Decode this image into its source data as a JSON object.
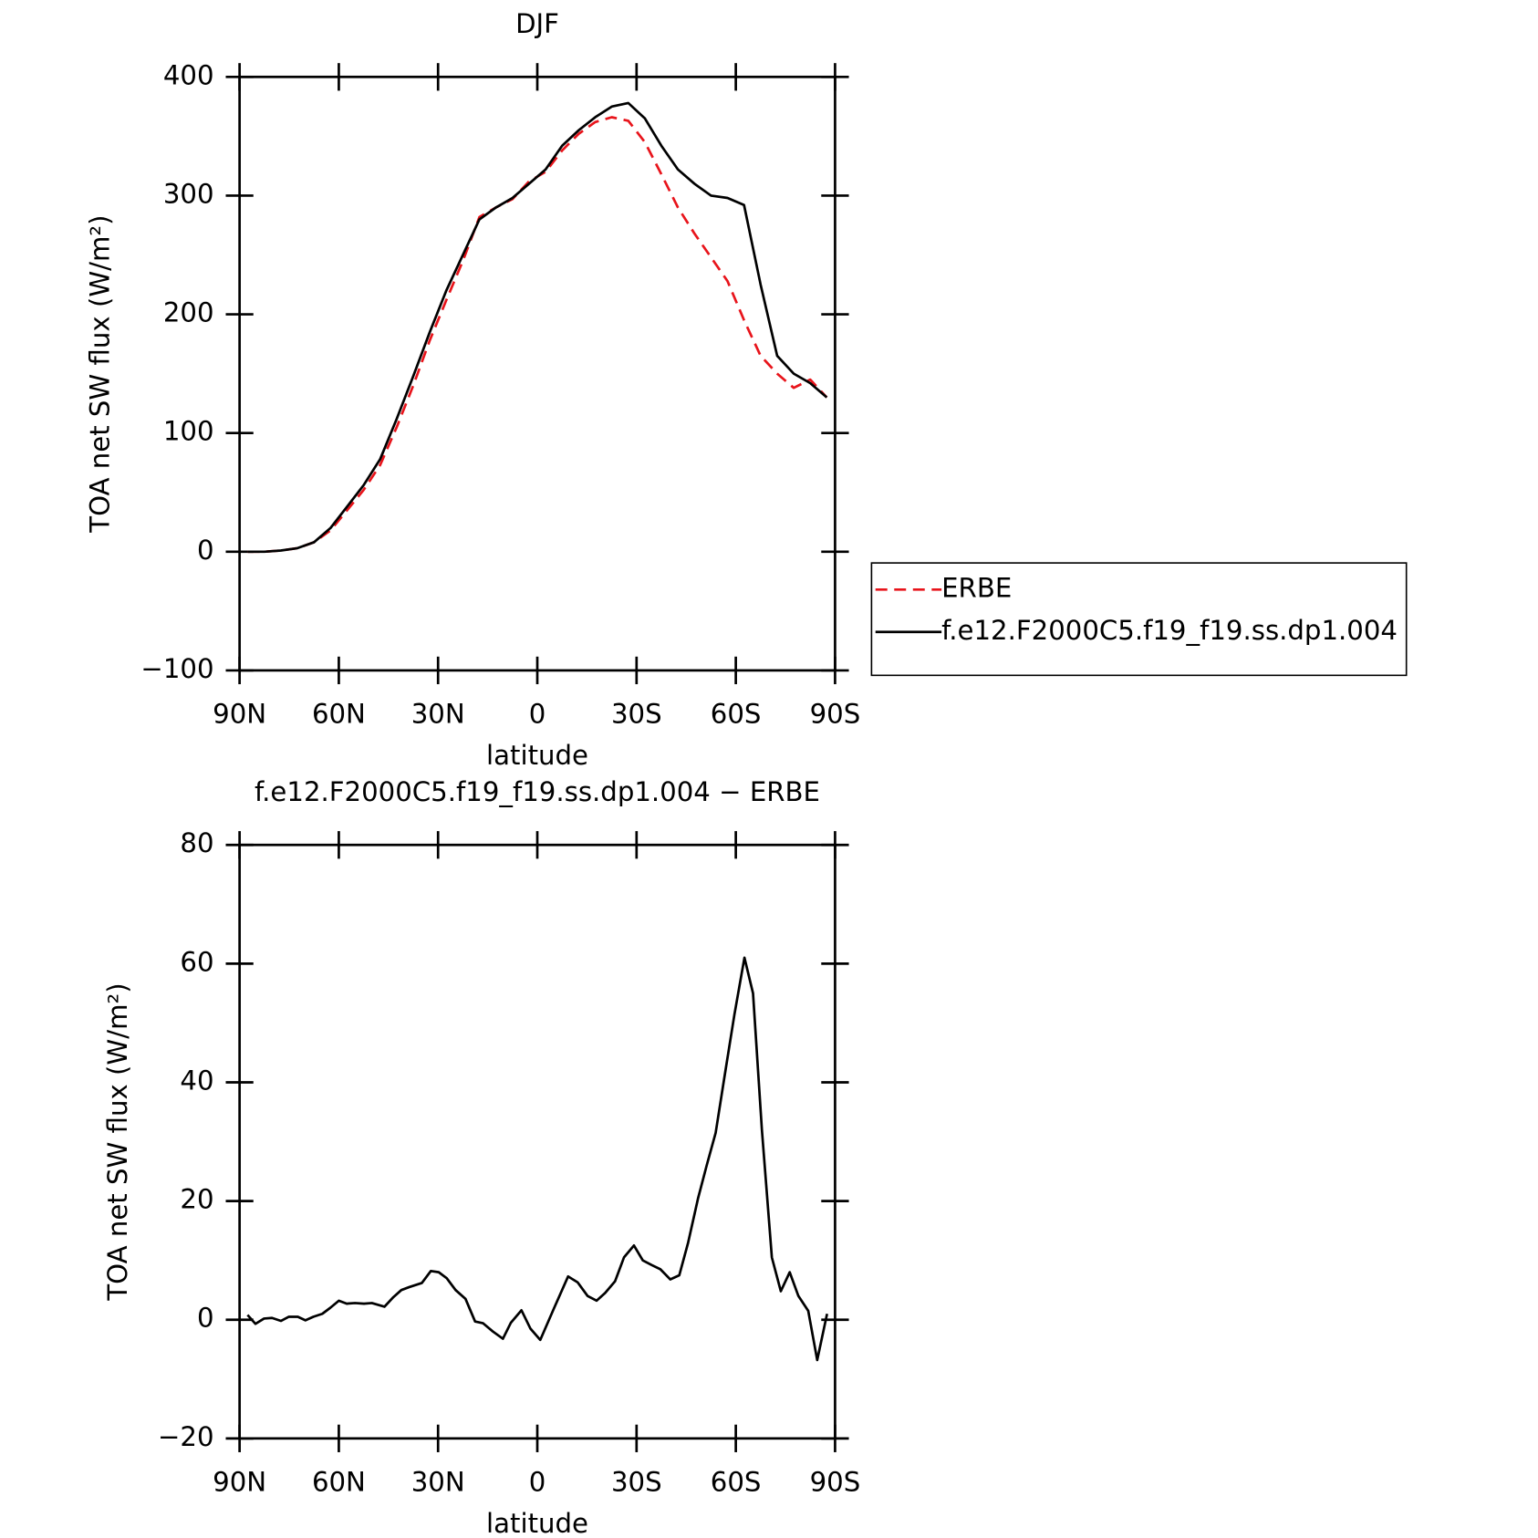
{
  "chart_data": [
    {
      "type": "line",
      "title": "DJF",
      "xlabel": "latitude",
      "ylabel": "TOA net SW flux (W/m²)",
      "x": [
        87.5,
        82.5,
        77.5,
        72.5,
        67.5,
        62.5,
        57.5,
        52.5,
        47.5,
        42.5,
        37.5,
        32.5,
        27.5,
        22.5,
        17.5,
        12.5,
        7.5,
        2.5,
        -2.5,
        -7.5,
        -12.5,
        -17.5,
        -22.5,
        -27.5,
        -32.5,
        -37.5,
        -42.5,
        -47.5,
        -52.5,
        -57.5,
        -62.5,
        -67.5,
        -72.5,
        -77.5,
        -82.5,
        -87.5
      ],
      "series": [
        {
          "name": "ERBE",
          "color": "#e8141b",
          "style": "dashed",
          "values": [
            0,
            0,
            1,
            3,
            8,
            18,
            35,
            52,
            73,
            105,
            140,
            178,
            212,
            245,
            282,
            290,
            297,
            312,
            320,
            338,
            352,
            362,
            366,
            363,
            345,
            318,
            290,
            268,
            248,
            228,
            195,
            165,
            150,
            138,
            145,
            130
          ]
        },
        {
          "name": "f.e12.F2000C5.f19_f19.ss.dp1.004",
          "color": "#000000",
          "style": "solid",
          "values": [
            0,
            0,
            1,
            3,
            8,
            20,
            38,
            56,
            78,
            112,
            148,
            185,
            220,
            250,
            280,
            290,
            298,
            310,
            322,
            342,
            355,
            366,
            375,
            378,
            365,
            342,
            322,
            310,
            300,
            298,
            292,
            225,
            165,
            150,
            142,
            130
          ]
        }
      ],
      "xlim": [
        90,
        -90
      ],
      "xticks": [
        {
          "value": 90,
          "label": "90N"
        },
        {
          "value": 60,
          "label": "60N"
        },
        {
          "value": 30,
          "label": "30N"
        },
        0,
        {
          "value": -30,
          "label": "30S"
        },
        {
          "value": -60,
          "label": "60S"
        },
        {
          "value": -90,
          "label": "90S"
        }
      ],
      "ylim": [
        -100,
        400
      ],
      "yticks": [
        {
          "value": -100,
          "label": "−100"
        },
        0,
        100,
        200,
        300,
        400
      ],
      "legend": "right"
    },
    {
      "type": "line",
      "title": "f.e12.F2000C5.f19_f19.ss.dp1.004 − ERBE",
      "xlabel": "latitude",
      "ylabel": "TOA net SW flux (W/m²)",
      "x": [
        87.6,
        85.2,
        82.6,
        80.2,
        77.5,
        75.1,
        72.4,
        70.1,
        67.7,
        65.0,
        62.6,
        60.0,
        57.6,
        55.1,
        52.4,
        50.0,
        46.2,
        43.5,
        41.1,
        38.7,
        34.9,
        32.2,
        29.8,
        27.4,
        24.7,
        21.7,
        18.8,
        16.4,
        13.4,
        10.4,
        8.0,
        4.8,
        2.1,
        -0.9,
        -5.1,
        -9.3,
        -12.2,
        -15.2,
        -17.9,
        -20.5,
        -23.5,
        -26.2,
        -29.2,
        -31.9,
        -34.6,
        -37.2,
        -40.2,
        -42.9,
        -45.6,
        -48.6,
        -51.2,
        -53.9,
        -56.6,
        -59.6,
        -62.6,
        -65.2,
        -67.9,
        -70.9,
        -73.6,
        -76.3,
        -78.9,
        -81.9,
        -84.6,
        -87.6
      ],
      "series": [
        {
          "name": "f.e12.F2000C5.f19_f19.ss.dp1.004 − ERBE",
          "color": "#000000",
          "style": "solid",
          "values": [
            0.8,
            -0.7,
            0.2,
            0.3,
            -0.2,
            0.5,
            0.5,
            -0.1,
            0.5,
            1,
            2,
            3.2,
            2.7,
            2.8,
            2.7,
            2.8,
            2.2,
            3.8,
            5,
            5.5,
            6.2,
            8.2,
            8,
            7,
            5,
            3.5,
            -0.3,
            -0.6,
            -2,
            -3.2,
            -0.5,
            1.6,
            -1.5,
            -3.4,
            2,
            7.3,
            6.3,
            4,
            3.2,
            4.5,
            6.5,
            10.5,
            12.5,
            10,
            9.2,
            8.5,
            6.8,
            7.5,
            13,
            20.5,
            26,
            31.5,
            41,
            51.5,
            61,
            55,
            32,
            10.5,
            4.8,
            8,
            4,
            1.5,
            -6.8,
            1
          ]
        }
      ],
      "xlim": [
        90,
        -90
      ],
      "xticks": [
        {
          "value": 90,
          "label": "90N"
        },
        {
          "value": 60,
          "label": "60N"
        },
        {
          "value": 30,
          "label": "30N"
        },
        0,
        {
          "value": -30,
          "label": "30S"
        },
        {
          "value": -60,
          "label": "60S"
        },
        {
          "value": -90,
          "label": "90S"
        }
      ],
      "ylim": [
        -20,
        80
      ],
      "yticks": [
        {
          "value": -20,
          "label": "−20"
        },
        0,
        20,
        40,
        60,
        80
      ]
    }
  ]
}
